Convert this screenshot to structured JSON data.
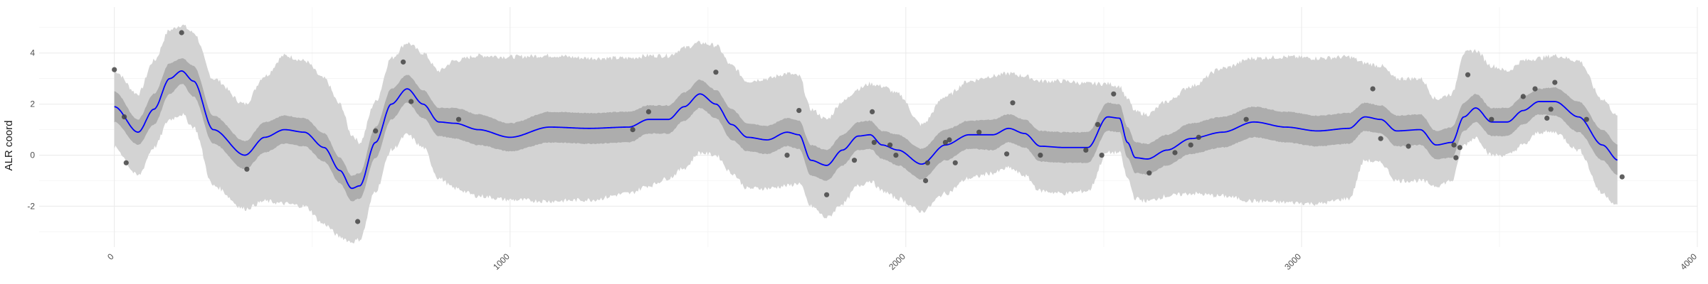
{
  "chart_data": {
    "type": "line",
    "title": "",
    "xlabel": "",
    "ylabel": "ALR coord",
    "xlim": [
      -190,
      4000
    ],
    "ylim": [
      -3.6,
      5.8
    ],
    "x_ticks": [
      0,
      1000,
      2000,
      3000,
      4000
    ],
    "x_tick_labels": [
      "0",
      "1000",
      "2000",
      "3000",
      "4000"
    ],
    "y_ticks": [
      -2,
      0,
      2,
      4
    ],
    "y_tick_labels": [
      "-2",
      "0",
      "2",
      "4"
    ],
    "grid": true,
    "legend": "none",
    "mean_line": {
      "color": "#0000ff",
      "x": [
        0,
        60,
        100,
        140,
        170,
        200,
        250,
        330,
        380,
        430,
        480,
        530,
        570,
        600,
        620,
        660,
        700,
        740,
        780,
        820,
        860,
        920,
        1000,
        1100,
        1200,
        1300,
        1350,
        1400,
        1440,
        1480,
        1520,
        1560,
        1600,
        1650,
        1700,
        1730,
        1760,
        1800,
        1840,
        1880,
        1910,
        1940,
        1980,
        2040,
        2100,
        2160,
        2220,
        2260,
        2300,
        2340,
        2400,
        2460,
        2510,
        2540,
        2560,
        2580,
        2610,
        2660,
        2720,
        2800,
        2880,
        2960,
        3040,
        3120,
        3160,
        3200,
        3240,
        3300,
        3340,
        3380,
        3410,
        3440,
        3480,
        3520,
        3560,
        3600,
        3640,
        3700,
        3760,
        3800
      ],
      "y": [
        1.9,
        0.9,
        1.8,
        3.0,
        3.3,
        2.9,
        1.0,
        0.0,
        0.7,
        1.0,
        0.9,
        0.3,
        -0.6,
        -1.3,
        -1.2,
        0.5,
        2.0,
        2.6,
        2.0,
        1.3,
        1.25,
        1.0,
        0.7,
        1.1,
        1.05,
        1.1,
        1.4,
        1.4,
        1.9,
        2.4,
        2.0,
        1.2,
        0.7,
        0.6,
        0.9,
        0.8,
        -0.2,
        -0.4,
        0.2,
        0.75,
        0.8,
        0.4,
        0.2,
        -0.35,
        0.4,
        0.8,
        0.8,
        1.05,
        0.85,
        0.35,
        0.3,
        0.3,
        1.5,
        1.45,
        0.5,
        -0.1,
        -0.15,
        0.2,
        0.65,
        0.9,
        1.3,
        1.1,
        0.95,
        1.05,
        1.5,
        1.4,
        0.95,
        1.0,
        0.4,
        0.5,
        1.5,
        1.85,
        1.3,
        1.3,
        1.75,
        2.1,
        2.1,
        1.5,
        0.4,
        -0.2
      ]
    },
    "inner_band": {
      "color": "#adadad",
      "lower": [
        1.3,
        0.4,
        1.2,
        2.4,
        2.8,
        2.3,
        0.45,
        -0.55,
        0.1,
        0.45,
        0.35,
        -0.25,
        -1.1,
        -1.8,
        -1.7,
        -0.1,
        1.4,
        2.05,
        1.45,
        0.75,
        0.65,
        0.4,
        0.15,
        0.5,
        0.45,
        0.5,
        0.85,
        0.85,
        1.35,
        1.85,
        1.45,
        0.6,
        0.15,
        0.05,
        0.35,
        0.25,
        -0.8,
        -1.0,
        -0.4,
        0.2,
        0.25,
        -0.15,
        -0.4,
        -0.95,
        -0.2,
        0.25,
        0.2,
        0.5,
        0.3,
        -0.25,
        -0.3,
        -0.3,
        0.95,
        0.9,
        -0.1,
        -0.7,
        -0.75,
        -0.4,
        0.05,
        0.3,
        0.7,
        0.5,
        0.35,
        0.45,
        0.95,
        0.85,
        0.35,
        0.4,
        -0.15,
        -0.1,
        0.95,
        1.3,
        0.75,
        0.75,
        1.2,
        1.6,
        1.55,
        0.9,
        -0.2,
        -0.8
      ],
      "upper": [
        2.5,
        1.4,
        2.4,
        3.6,
        3.8,
        3.5,
        1.55,
        0.55,
        1.3,
        1.55,
        1.45,
        0.85,
        -0.1,
        -0.8,
        -0.7,
        1.1,
        2.6,
        3.15,
        2.55,
        1.85,
        1.85,
        1.6,
        1.25,
        1.7,
        1.65,
        1.7,
        1.95,
        1.95,
        2.45,
        2.95,
        2.55,
        1.8,
        1.25,
        1.15,
        1.45,
        1.35,
        0.4,
        0.2,
        0.8,
        1.3,
        1.35,
        0.95,
        0.8,
        0.25,
        1.0,
        1.35,
        1.4,
        1.6,
        1.4,
        0.95,
        0.9,
        0.9,
        2.05,
        2.0,
        1.1,
        0.5,
        0.45,
        0.8,
        1.25,
        1.5,
        1.9,
        1.7,
        1.55,
        1.65,
        2.05,
        1.95,
        1.55,
        1.6,
        0.95,
        1.1,
        2.05,
        2.4,
        1.85,
        1.85,
        2.3,
        2.6,
        2.65,
        2.1,
        1.0,
        0.4
      ]
    },
    "outer_band": {
      "color": "#d3d3d3",
      "lower": [
        0.3,
        -0.8,
        0.3,
        1.4,
        1.6,
        1.1,
        -1.2,
        -2.1,
        -1.8,
        -1.9,
        -2.0,
        -2.7,
        -3.2,
        -3.4,
        -3.3,
        -1.4,
        0.2,
        0.8,
        0.3,
        -0.9,
        -1.3,
        -1.6,
        -1.75,
        -1.8,
        -1.75,
        -1.5,
        -1.2,
        -0.9,
        -0.5,
        0.1,
        0.0,
        -0.7,
        -1.3,
        -1.3,
        -1.2,
        -1.1,
        -2.0,
        -2.45,
        -1.9,
        -1.2,
        -1.0,
        -1.4,
        -1.7,
        -2.2,
        -1.5,
        -0.9,
        -0.7,
        -0.5,
        -0.8,
        -1.4,
        -1.5,
        -1.4,
        0.1,
        0.1,
        -0.9,
        -1.7,
        -1.8,
        -1.6,
        -1.5,
        -1.6,
        -1.8,
        -1.85,
        -1.9,
        -1.7,
        -0.2,
        -0.3,
        -1.0,
        -1.0,
        -1.2,
        -1.0,
        0.4,
        0.7,
        0.0,
        0.0,
        0.4,
        0.9,
        0.9,
        0.2,
        -1.5,
        -2.0
      ],
      "upper": [
        3.3,
        2.4,
        3.7,
        4.9,
        5.1,
        4.8,
        3.0,
        2.0,
        3.1,
        3.9,
        3.7,
        3.0,
        2.0,
        0.8,
        0.5,
        2.1,
        3.8,
        4.4,
        4.0,
        3.3,
        3.7,
        3.9,
        3.85,
        3.9,
        3.8,
        3.8,
        3.9,
        3.9,
        4.2,
        4.4,
        4.3,
        3.5,
        2.9,
        3.0,
        3.2,
        3.1,
        1.8,
        1.4,
        2.1,
        2.6,
        2.8,
        2.7,
        2.4,
        1.2,
        2.3,
        2.9,
        3.1,
        3.2,
        3.1,
        2.9,
        2.9,
        2.8,
        2.8,
        2.7,
        2.2,
        1.7,
        1.6,
        2.1,
        2.7,
        3.4,
        3.8,
        3.85,
        3.8,
        3.85,
        3.6,
        3.5,
        3.0,
        3.0,
        2.2,
        2.4,
        4.0,
        4.1,
        3.5,
        3.3,
        3.7,
        3.8,
        3.9,
        3.7,
        2.2,
        1.5
      ]
    },
    "points": {
      "color": "#444444",
      "x": [
        0,
        25,
        30,
        170,
        335,
        615,
        660,
        730,
        750,
        870,
        1310,
        1350,
        1520,
        1700,
        1730,
        1800,
        1870,
        1915,
        1920,
        1960,
        1975,
        2050,
        2055,
        2100,
        2110,
        2125,
        2185,
        2255,
        2270,
        2340,
        2455,
        2485,
        2495,
        2525,
        2615,
        2680,
        2720,
        2740,
        2860,
        3180,
        3200,
        3270,
        3385,
        3390,
        3400,
        3420,
        3480,
        3560,
        3590,
        3620,
        3630,
        3640,
        3720,
        3810
      ],
      "y": [
        3.35,
        1.5,
        -0.3,
        4.8,
        -0.55,
        -2.6,
        0.95,
        3.65,
        2.1,
        1.4,
        1.0,
        1.7,
        3.25,
        0.0,
        1.75,
        -1.55,
        -0.2,
        1.7,
        0.5,
        0.4,
        0.0,
        -1.0,
        -0.3,
        0.5,
        0.6,
        -0.3,
        0.9,
        0.05,
        2.05,
        0.0,
        0.2,
        1.2,
        0.0,
        2.4,
        -0.7,
        0.1,
        0.4,
        0.7,
        1.4,
        2.6,
        0.65,
        0.35,
        0.4,
        -0.1,
        0.3,
        3.15,
        1.4,
        2.3,
        2.6,
        1.45,
        1.8,
        2.85,
        1.4,
        -0.85
      ]
    }
  }
}
